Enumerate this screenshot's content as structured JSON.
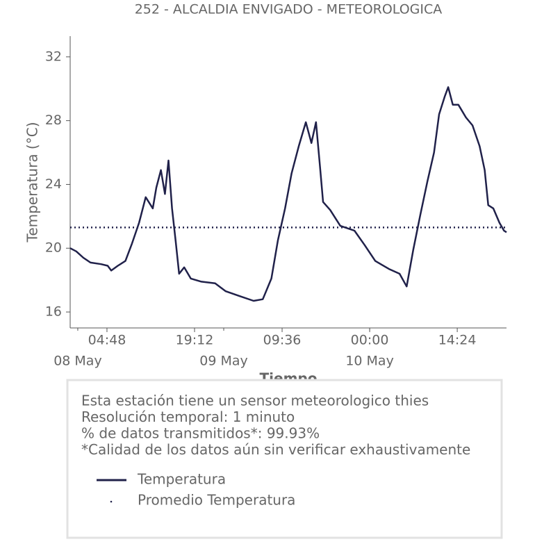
{
  "chart_data": {
    "type": "line",
    "title": "252 - ALCALDIA ENVIGADO - METEOROLOGICA",
    "xlabel": "Tiempo",
    "ylabel": "Temperatura (°C)",
    "xlim": [
      "07 May 22:45",
      "10 May 22:30"
    ],
    "xticks": [
      {
        "value": "08 May 04:48",
        "label": "04:48"
      },
      {
        "value": "08 May 19:12",
        "label": "19:12"
      },
      {
        "value": "09 May 09:36",
        "label": "09:36"
      },
      {
        "value": "10 May 00:00",
        "label": "00:00"
      },
      {
        "value": "10 May 14:24",
        "label": "14:24"
      }
    ],
    "xticks_minor": [
      {
        "value": "08 May 00:00",
        "label": "08 May"
      },
      {
        "value": "09 May 00:00",
        "label": "09 May"
      },
      {
        "value": "10 May 00:00",
        "label": "10 May"
      }
    ],
    "ylim": [
      15,
      33.3
    ],
    "yticks": [
      16,
      20,
      24,
      28,
      32
    ],
    "grid": false,
    "series": [
      {
        "name": "Temperatura",
        "color": "#20214a",
        "x": [
          "07 May 22:45",
          "07 May 23:45",
          "08 May 00:55",
          "08 May 02:05",
          "08 May 03:50",
          "08 May 04:55",
          "08 May 05:30",
          "08 May 06:35",
          "08 May 07:50",
          "08 May 08:55",
          "08 May 10:05",
          "08 May 11:10",
          "08 May 12:20",
          "08 May 12:55",
          "08 May 13:40",
          "08 May 14:20",
          "08 May 14:55",
          "08 May 15:30",
          "08 May 16:05",
          "08 May 16:40",
          "08 May 17:30",
          "08 May 18:35",
          "08 May 20:20",
          "08 May 22:35",
          "09 May 00:20",
          "09 May 02:35",
          "09 May 04:55",
          "09 May 06:25",
          "09 May 07:50",
          "09 May 08:55",
          "09 May 10:05",
          "09 May 11:10",
          "09 May 12:20",
          "09 May 13:30",
          "09 May 14:25",
          "09 May 15:10",
          "09 May 15:50",
          "09 May 16:20",
          "09 May 17:30",
          "09 May 19:10",
          "09 May 21:30",
          "09 May 23:10",
          "10 May 00:55",
          "10 May 03:10",
          "10 May 04:55",
          "10 May 06:05",
          "10 May 07:10",
          "10 May 08:20",
          "10 May 09:30",
          "10 May 10:35",
          "10 May 11:25",
          "10 May 12:20",
          "10 May 12:55",
          "10 May 13:40",
          "10 May 14:35",
          "10 May 15:50",
          "10 May 16:55",
          "10 May 18:05",
          "10 May 18:55",
          "10 May 19:30",
          "10 May 20:20",
          "10 May 21:20",
          "10 May 22:05",
          "10 May 22:30"
        ],
        "values": [
          20.0,
          19.8,
          19.4,
          19.1,
          19.0,
          18.9,
          18.6,
          18.9,
          19.2,
          20.3,
          21.6,
          23.2,
          22.5,
          23.8,
          24.9,
          23.4,
          25.5,
          22.5,
          20.5,
          18.4,
          18.8,
          18.1,
          17.9,
          17.8,
          17.3,
          17.0,
          16.7,
          16.8,
          18.1,
          20.5,
          22.5,
          24.7,
          26.4,
          27.9,
          26.6,
          27.9,
          25.1,
          22.9,
          22.4,
          21.4,
          21.1,
          20.2,
          19.2,
          18.7,
          18.4,
          17.6,
          19.9,
          22.1,
          24.2,
          26.0,
          28.4,
          29.5,
          30.1,
          29.0,
          29.0,
          28.2,
          27.7,
          26.4,
          24.9,
          22.7,
          22.5,
          21.6,
          21.1,
          21.0
        ]
      }
    ],
    "reference_line": {
      "name": "Promedio Temperatura",
      "value": 21.3,
      "color": "#20214a"
    },
    "info_box": [
      "Esta estación tiene un sensor meteorologico thies",
      "Resolución temporal: 1 minuto",
      "% de datos transmitidos*: 99.93%",
      "*Calidad de los datos aún sin verificar exhaustivamente"
    ]
  }
}
